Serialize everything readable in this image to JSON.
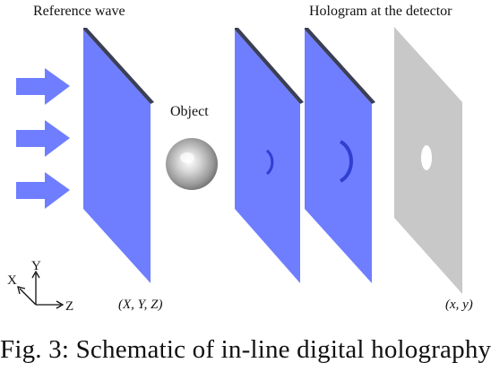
{
  "labels": {
    "reference_wave": "Reference wave",
    "hologram_at_detector": "Hologram at the detector",
    "object": "Object",
    "object_plane_coords": "(X, Y, Z)",
    "detector_coords": "(x, y)",
    "axis_x": "X",
    "axis_y": "Y",
    "axis_z": "Z"
  },
  "caption": "Fig. 3: Schematic of in-line digital holography",
  "colors": {
    "plane_fill": "#6f7eff",
    "plane_edge": "#3b3f56",
    "arrow_fill": "#6f7eff",
    "text": "#111111"
  },
  "icons": {
    "arrows": "right-arrow",
    "object": "sphere",
    "hologram": "concentric-fringes"
  }
}
